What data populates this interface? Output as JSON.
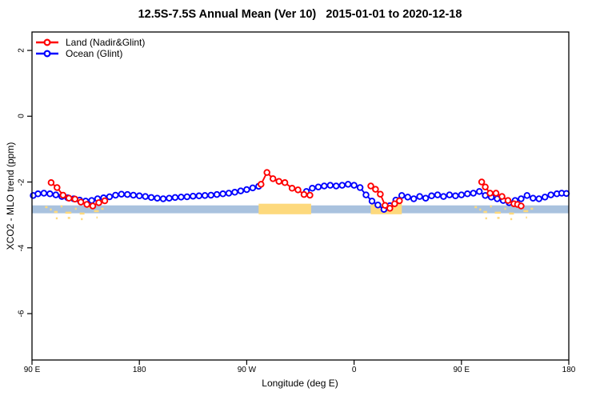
{
  "title": "12.5S-7.5S Annual Mean (Ver 10)   2015-01-01 to 2020-12-18",
  "legend": {
    "items": [
      {
        "label": "Land (Nadir&Glint)",
        "color": "#ff0000"
      },
      {
        "label": "Ocean (Glint)",
        "color": "#0000ff"
      }
    ]
  },
  "chart_data": {
    "type": "line",
    "title": "12.5S-7.5S Annual Mean (Ver 10)   2015-01-01 to 2020-12-18",
    "xlabel": "Longitude (deg E)",
    "ylabel": "XCO2 - MLO trend (ppm)",
    "grid": false,
    "legend_position": "top-left",
    "x_axis": {
      "range_deg": [
        90,
        540
      ],
      "note": "longitude increasing eastward, wrapping 90E-180-90W-0-90E-180",
      "ticks": [
        {
          "deg": 90,
          "label": "90 E"
        },
        {
          "deg": 180,
          "label": "180"
        },
        {
          "deg": 270,
          "label": "90 W"
        },
        {
          "deg": 360,
          "label": "0"
        },
        {
          "deg": 450,
          "label": "90 E"
        },
        {
          "deg": 540,
          "label": "180"
        }
      ]
    },
    "y_axis": {
      "range": [
        -7.41,
        2.56
      ],
      "ticks": [
        {
          "value": 2,
          "label": "2"
        },
        {
          "value": 0,
          "label": "0"
        },
        {
          "value": -2,
          "label": "-2"
        },
        {
          "value": -4,
          "label": "-4"
        },
        {
          "value": -6,
          "label": "-6"
        }
      ]
    },
    "series": [
      {
        "name": "Land (Nadir&Glint)",
        "color": "#ff0000",
        "marker": "open-circle",
        "segments": [
          [
            [
              106,
              -2.02
            ],
            [
              111,
              -2.17
            ],
            [
              116,
              -2.4
            ],
            [
              121,
              -2.49
            ],
            [
              126,
              -2.52
            ],
            [
              131,
              -2.61
            ],
            [
              136,
              -2.68
            ],
            [
              141,
              -2.73
            ],
            [
              146,
              -2.63
            ],
            [
              151,
              -2.57
            ]
          ],
          [
            [
              282,
              -2.07
            ],
            [
              287,
              -1.71
            ],
            [
              292,
              -1.9
            ],
            [
              297,
              -1.98
            ],
            [
              302,
              -2.02
            ],
            [
              308,
              -2.19
            ],
            [
              313,
              -2.24
            ],
            [
              318,
              -2.38
            ],
            [
              323,
              -2.4
            ]
          ],
          [
            [
              374,
              -2.12
            ],
            [
              378,
              -2.22
            ],
            [
              382,
              -2.37
            ],
            [
              386,
              -2.71
            ],
            [
              390,
              -2.8
            ],
            [
              394,
              -2.66
            ],
            [
              398,
              -2.57
            ]
          ],
          [
            [
              467,
              -2.0
            ],
            [
              470,
              -2.15
            ],
            [
              474,
              -2.34
            ],
            [
              479,
              -2.34
            ],
            [
              484,
              -2.44
            ],
            [
              489,
              -2.56
            ],
            [
              494,
              -2.66
            ],
            [
              497,
              -2.68
            ],
            [
              500,
              -2.73
            ]
          ]
        ]
      },
      {
        "name": "Ocean (Glint)",
        "color": "#0000ff",
        "marker": "open-circle",
        "segments": [
          [
            [
              91,
              -2.41
            ],
            [
              95,
              -2.36
            ],
            [
              100,
              -2.34
            ],
            [
              105,
              -2.36
            ],
            [
              110,
              -2.39
            ],
            [
              115,
              -2.44
            ],
            [
              120,
              -2.48
            ],
            [
              125,
              -2.51
            ],
            [
              130,
              -2.55
            ],
            [
              135,
              -2.58
            ],
            [
              140,
              -2.56
            ],
            [
              145,
              -2.51
            ],
            [
              150,
              -2.48
            ],
            [
              155,
              -2.45
            ],
            [
              160,
              -2.4
            ],
            [
              165,
              -2.37
            ],
            [
              170,
              -2.38
            ],
            [
              175,
              -2.4
            ],
            [
              180,
              -2.42
            ],
            [
              185,
              -2.44
            ],
            [
              190,
              -2.47
            ],
            [
              195,
              -2.49
            ],
            [
              200,
              -2.51
            ],
            [
              205,
              -2.49
            ],
            [
              210,
              -2.47
            ],
            [
              215,
              -2.46
            ],
            [
              220,
              -2.45
            ],
            [
              225,
              -2.43
            ],
            [
              230,
              -2.42
            ],
            [
              235,
              -2.41
            ],
            [
              240,
              -2.4
            ],
            [
              245,
              -2.38
            ],
            [
              250,
              -2.36
            ],
            [
              255,
              -2.34
            ],
            [
              260,
              -2.31
            ],
            [
              265,
              -2.27
            ],
            [
              270,
              -2.23
            ],
            [
              275,
              -2.18
            ],
            [
              280,
              -2.13
            ]
          ],
          [
            [
              320,
              -2.29
            ],
            [
              325,
              -2.19
            ],
            [
              330,
              -2.15
            ],
            [
              335,
              -2.12
            ],
            [
              340,
              -2.1
            ],
            [
              345,
              -2.12
            ],
            [
              350,
              -2.1
            ],
            [
              355,
              -2.07
            ],
            [
              360,
              -2.1
            ],
            [
              365,
              -2.17
            ],
            [
              370,
              -2.39
            ],
            [
              375,
              -2.58
            ],
            [
              380,
              -2.7
            ],
            [
              385,
              -2.83
            ],
            [
              390,
              -2.72
            ],
            [
              395,
              -2.55
            ],
            [
              400,
              -2.41
            ],
            [
              405,
              -2.46
            ],
            [
              410,
              -2.51
            ],
            [
              415,
              -2.44
            ],
            [
              420,
              -2.49
            ],
            [
              425,
              -2.42
            ],
            [
              430,
              -2.39
            ],
            [
              435,
              -2.44
            ],
            [
              440,
              -2.39
            ],
            [
              445,
              -2.42
            ],
            [
              450,
              -2.39
            ],
            [
              455,
              -2.36
            ],
            [
              460,
              -2.34
            ],
            [
              465,
              -2.29
            ],
            [
              470,
              -2.41
            ],
            [
              475,
              -2.46
            ],
            [
              480,
              -2.51
            ],
            [
              485,
              -2.56
            ],
            [
              490,
              -2.63
            ],
            [
              495,
              -2.56
            ],
            [
              500,
              -2.51
            ],
            [
              505,
              -2.41
            ],
            [
              510,
              -2.49
            ],
            [
              515,
              -2.51
            ],
            [
              520,
              -2.46
            ],
            [
              525,
              -2.39
            ],
            [
              530,
              -2.36
            ],
            [
              534,
              -2.34
            ],
            [
              538,
              -2.35
            ]
          ]
        ]
      }
    ],
    "surface_strip": {
      "description": "ocean/land map band along 12.5S-7.5S",
      "ocean_color": "#a9c2de",
      "land_color": "#fdd97d",
      "band_ppm": [
        -2.71,
        -2.95
      ],
      "land_ppm": [
        -2.66,
        -2.98
      ],
      "land_segments_deg": [
        [
          280,
          324
        ],
        [
          374,
          400
        ]
      ],
      "island_speckles": [
        [
          101,
          2,
          3
        ],
        [
          105,
          1.5,
          6
        ],
        [
          108.5,
          3,
          9
        ],
        [
          114,
          1.5,
          2
        ],
        [
          118,
          5,
          10
        ],
        [
          126,
          1.5,
          5
        ],
        [
          130,
          4,
          11
        ],
        [
          137,
          1.5,
          3
        ],
        [
          142,
          4,
          8
        ],
        [
          148,
          2,
          5
        ],
        [
          110,
          1.5,
          17
        ],
        [
          120,
          2,
          16.5
        ],
        [
          131,
          1.5,
          18
        ],
        [
          144,
          1,
          16
        ]
      ],
      "repeat_offset_deg": 360
    }
  }
}
